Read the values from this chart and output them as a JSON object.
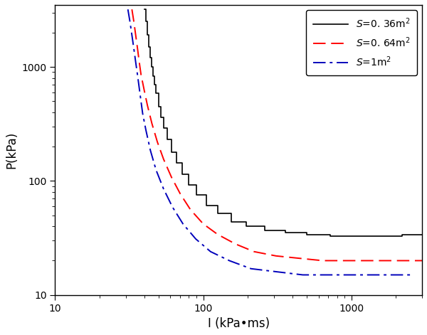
{
  "title": "",
  "xlabel": "I (kPa•ms)",
  "ylabel": "P(kPa)",
  "xlim": [
    10,
    3000
  ],
  "ylim": [
    10,
    3500
  ],
  "legend_entries": [
    {
      "label": "$S$=0. 36m$^2$",
      "color": "#000000",
      "linestyle": "solid"
    },
    {
      "label": "$S$=0. 64m$^2$",
      "color": "#ff0000",
      "linestyle": "dashed"
    },
    {
      "label": "$S$=1m$^2$",
      "color": "#0000bb",
      "linestyle": "dashdot"
    }
  ],
  "curve1": {
    "comment": "S=0.36m^2, black solid line - steep near x=40, flat near y=30",
    "I": [
      40,
      41,
      42,
      43,
      44,
      45,
      46,
      47,
      48,
      50,
      52,
      54,
      57,
      61,
      66,
      72,
      80,
      90,
      105,
      125,
      155,
      195,
      260,
      360,
      500,
      720,
      1050,
      1500,
      2200,
      3000
    ],
    "P": [
      3200,
      2500,
      1900,
      1500,
      1200,
      1000,
      830,
      700,
      590,
      450,
      360,
      290,
      230,
      180,
      145,
      115,
      92,
      75,
      61,
      52,
      44,
      40,
      37,
      35,
      34,
      33,
      33,
      33,
      34,
      34
    ]
  },
  "curve2": {
    "comment": "S=0.64m^2, red dashed line",
    "I": [
      33,
      34,
      35,
      36,
      37,
      38,
      40,
      42,
      45,
      49,
      54,
      61,
      70,
      82,
      100,
      125,
      165,
      220,
      310,
      440,
      640,
      950,
      1400,
      2100,
      3000
    ],
    "P": [
      3200,
      2500,
      1900,
      1450,
      1100,
      860,
      620,
      460,
      320,
      220,
      155,
      108,
      77,
      56,
      42,
      34,
      28,
      24,
      22,
      21,
      20,
      20,
      20,
      20,
      20
    ]
  },
  "curve3": {
    "comment": "S=1m^2, blue dash-dot line",
    "I": [
      31,
      32,
      33,
      34,
      35,
      36,
      37,
      38,
      39,
      41,
      44,
      48,
      54,
      62,
      73,
      89,
      112,
      150,
      210,
      310,
      470,
      720,
      1100,
      1700,
      2600
    ],
    "P": [
      3200,
      2500,
      1900,
      1450,
      1100,
      850,
      650,
      500,
      390,
      280,
      185,
      125,
      85,
      59,
      42,
      31,
      24,
      20,
      17,
      16,
      15,
      15,
      15,
      15,
      15
    ]
  }
}
